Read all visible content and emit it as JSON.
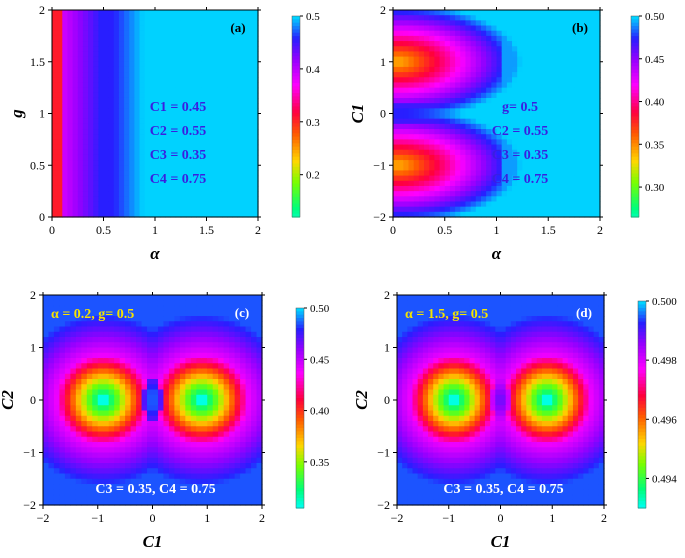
{
  "chart_data": [
    {
      "type": "heatmap",
      "panel_label": "(a)",
      "xlabel": "α",
      "ylabel": "g",
      "xlim": [
        0,
        2
      ],
      "ylim": [
        0,
        2
      ],
      "xticks": [
        "0",
        "0.5",
        "1",
        "1.5",
        "2"
      ],
      "yticks": [
        "0",
        "0.5",
        "1",
        "1.5",
        "2"
      ],
      "colorbar": {
        "min": 0.12,
        "max": 0.5,
        "ticks": [
          "0.5",
          "0.4",
          "0.3",
          "0.2"
        ]
      },
      "annotations": [
        "C1 = 0.45",
        "C2 = 0.55",
        "C3 = 0.35",
        "C4 = 0.75"
      ],
      "annotation_color": "#3a1fe0"
    },
    {
      "type": "heatmap",
      "panel_label": "(b)",
      "xlabel": "α",
      "ylabel": "C1",
      "xlim": [
        0,
        2
      ],
      "ylim": [
        -2,
        2
      ],
      "xticks": [
        "0",
        "0.5",
        "1",
        "1.5",
        "2"
      ],
      "yticks": [
        "−2",
        "−1",
        "0",
        "1",
        "2"
      ],
      "colorbar": {
        "min": 0.265,
        "max": 0.5,
        "ticks": [
          "0.50",
          "0.45",
          "0.40",
          "0.35",
          "0.30"
        ]
      },
      "annotations": [
        "g= 0.5",
        "C2 = 0.55",
        "C3 = 0.35",
        "C4 = 0.75"
      ],
      "annotation_color": "#3a1fe0"
    },
    {
      "type": "heatmap",
      "panel_label": "(c)",
      "xlabel": "C1",
      "ylabel": "C2",
      "xlim": [
        -2,
        2
      ],
      "ylim": [
        -2,
        2
      ],
      "xticks": [
        "−2",
        "−1",
        "0",
        "1",
        "2"
      ],
      "yticks": [
        "−2",
        "−1",
        "0",
        "1",
        "2"
      ],
      "colorbar": {
        "min": 0.305,
        "max": 0.5,
        "ticks": [
          "0.50",
          "0.45",
          "0.40",
          "0.35"
        ]
      },
      "annotations": [
        "α = 0.2, g= 0.5",
        "C3 = 0.35, C4 = 0.75"
      ],
      "annotation_color": "#f5e400"
    },
    {
      "type": "heatmap",
      "panel_label": "(d)",
      "xlabel": "C1",
      "ylabel": "C2",
      "xlim": [
        -2,
        2
      ],
      "ylim": [
        -2,
        2
      ],
      "xticks": [
        "−2",
        "−1",
        "0",
        "1",
        "2"
      ],
      "yticks": [
        "−2",
        "−1",
        "0",
        "1",
        "2"
      ],
      "colorbar": {
        "min": 0.493,
        "max": 0.5,
        "ticks": [
          "0.500",
          "0.498",
          "0.496",
          "0.494"
        ]
      },
      "annotations": [
        "α = 1.5, g= 0.5",
        "C3 = 0.35, C4 = 0.75"
      ],
      "annotation_color": "#f5e400"
    }
  ]
}
